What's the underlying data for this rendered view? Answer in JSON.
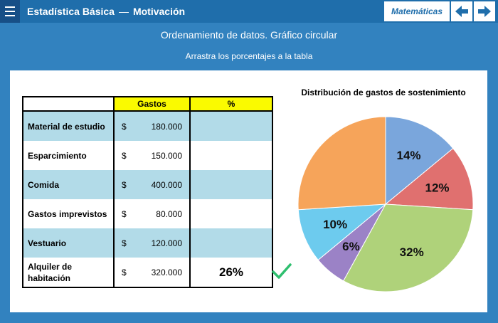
{
  "header": {
    "course": "Estadística Básica",
    "separator": "—",
    "section": "Motivación",
    "subject": "Matemáticas"
  },
  "page": {
    "title": "Ordenamiento de datos. Gráfico circular",
    "instruction": "Arrastra los porcentajes a la tabla"
  },
  "table": {
    "col_gastos": "Gastos",
    "col_pct": "%",
    "rows": [
      {
        "label": "Material de estudio",
        "currency": "$",
        "amount": "180.000",
        "pct": ""
      },
      {
        "label": "Esparcimiento",
        "currency": "$",
        "amount": "150.000",
        "pct": ""
      },
      {
        "label": "Comida",
        "currency": "$",
        "amount": "400.000",
        "pct": ""
      },
      {
        "label": "Gastos imprevistos",
        "currency": "$",
        "amount": "80.000",
        "pct": ""
      },
      {
        "label": "Vestuario",
        "currency": "$",
        "amount": "120.000",
        "pct": ""
      },
      {
        "label": "Alquiler de habitación",
        "currency": "$",
        "amount": "320.000",
        "pct": "26%"
      }
    ]
  },
  "icons": {
    "menu": "menu-icon",
    "prev": "arrow-left-icon",
    "next": "arrow-right-icon",
    "check": "checkmark-icon"
  },
  "colors": {
    "topbar": "#1f6eab",
    "background": "#3282bf",
    "header_yellow": "#fafa00",
    "row_blue": "#b2dbe8",
    "check_green": "#2fbf6f"
  },
  "chart_data": {
    "type": "pie",
    "title": "Distribución de gastos de sostenimiento",
    "slices": [
      {
        "label": "14%",
        "value": 14,
        "color": "#7aa6dc"
      },
      {
        "label": "12%",
        "value": 12,
        "color": "#e0706f"
      },
      {
        "label": "32%",
        "value": 32,
        "color": "#afd27a"
      },
      {
        "label": "6%",
        "value": 6,
        "color": "#9b82c6"
      },
      {
        "label": "10%",
        "value": 10,
        "color": "#6dcbee"
      },
      {
        "label": "",
        "value": 26,
        "color": "#f6a45a"
      }
    ]
  }
}
